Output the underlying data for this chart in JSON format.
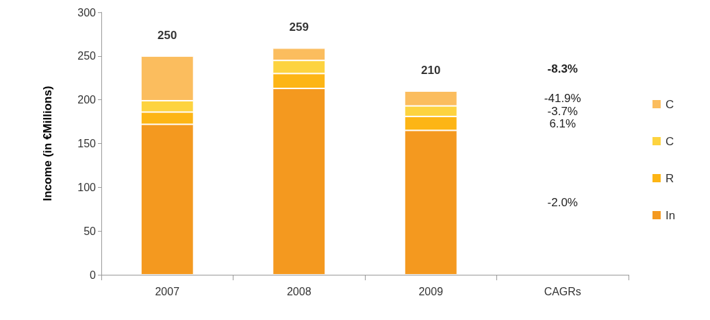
{
  "chart_data": {
    "type": "bar",
    "stacked": true,
    "ylabel": "Income (in €Millions)",
    "categories": [
      "2007",
      "2008",
      "2009",
      "CAGRs"
    ],
    "series": [
      {
        "name": "In",
        "color": "#f4991f",
        "values": [
          172,
          213,
          165,
          null
        ]
      },
      {
        "name": "R",
        "color": "#fdb515",
        "values": [
          14,
          17,
          16,
          null
        ]
      },
      {
        "name": "C",
        "color": "#fdd33f",
        "values": [
          13,
          15,
          12,
          null
        ]
      },
      {
        "name": "C",
        "color": "#fbbd5e",
        "values": [
          51,
          14,
          17,
          null
        ]
      }
    ],
    "totals": [
      "250",
      "259",
      "210",
      null
    ],
    "annotations": [
      "-8.3%",
      "-41.9%",
      "-3.7%",
      "6.1%",
      "-2.0%"
    ],
    "ylim": [
      0,
      300
    ],
    "yticks": [
      0,
      50,
      100,
      150,
      200,
      250,
      300
    ],
    "grid": false,
    "legend": "right"
  }
}
